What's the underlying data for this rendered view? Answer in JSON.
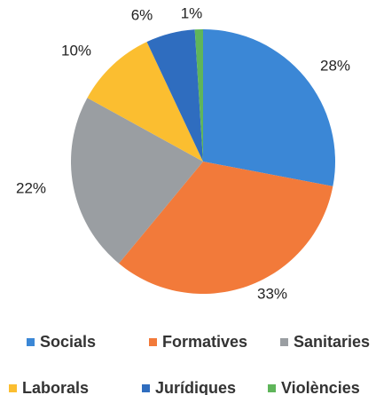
{
  "chart_data": {
    "type": "pie",
    "categories": [
      "Socials",
      "Formatives",
      "Sanitaries",
      "Laborals",
      "Jurídiques",
      "Violències"
    ],
    "values": [
      28,
      33,
      22,
      10,
      6,
      1
    ],
    "value_labels": [
      "28%",
      "33%",
      "22%",
      "10%",
      "6%",
      "1%"
    ],
    "colors": [
      "#3b87d6",
      "#f27a3a",
      "#9a9ea2",
      "#fbbe30",
      "#2f6dbf",
      "#5fb55a"
    ]
  }
}
